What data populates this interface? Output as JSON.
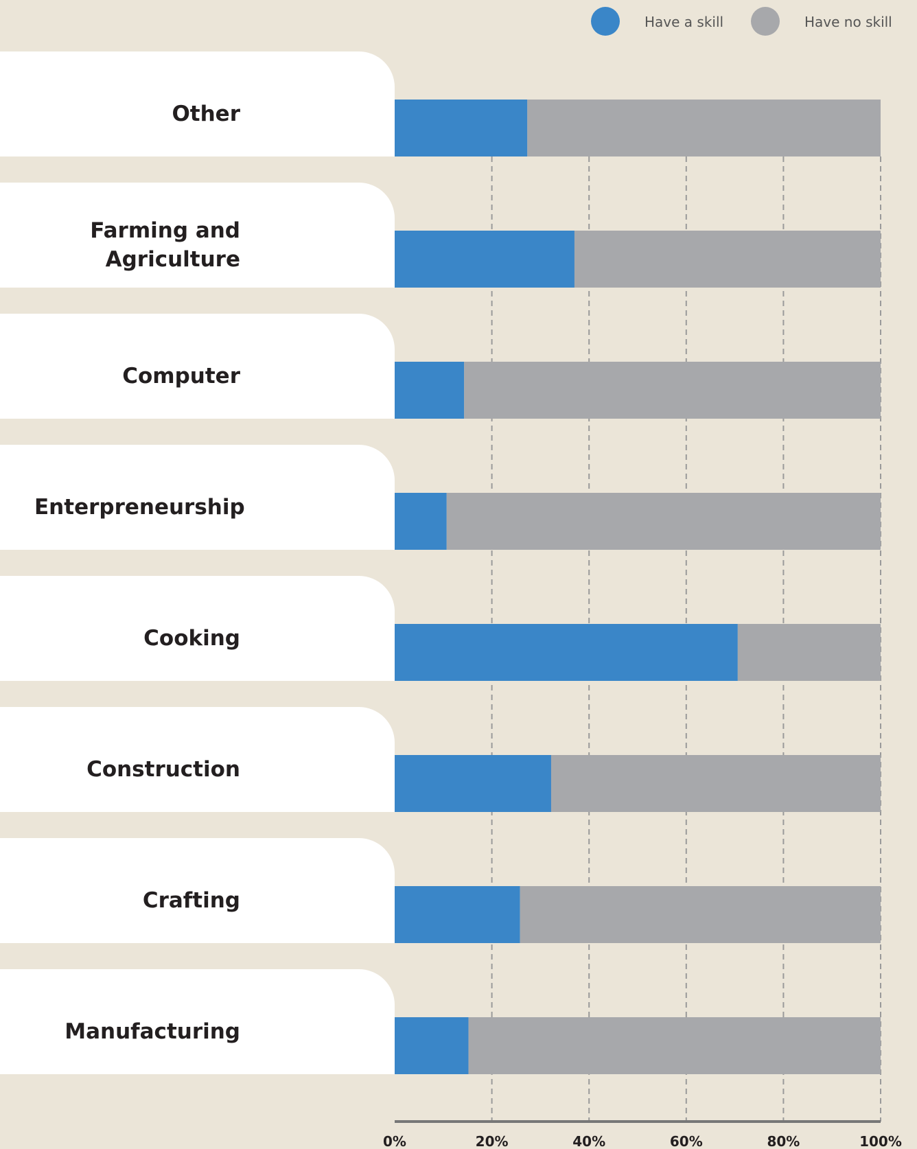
{
  "chart_data": {
    "type": "stacked-bar-horizontal",
    "categories": [
      "Other",
      "Farming and Agriculture",
      "Computer",
      "Enterpreneurship",
      "Cooking",
      "Construction",
      "Crafting",
      "Manufacturing"
    ],
    "series": [
      {
        "name": "Have a skill",
        "color": "#3a86c8",
        "values": [
          27.3,
          37.0,
          14.3,
          10.7,
          70.6,
          32.2,
          25.8,
          15.2
        ]
      },
      {
        "name": "Have no skill",
        "color": "#a7a8ab",
        "values": [
          72.7,
          63.0,
          85.7,
          89.3,
          29.4,
          67.8,
          74.2,
          84.8
        ]
      }
    ],
    "xlim": [
      0,
      100
    ],
    "xticks": [
      {
        "value": 0,
        "label": "0%"
      },
      {
        "value": 20,
        "label": "20%"
      },
      {
        "value": 40,
        "label": "40%"
      },
      {
        "value": 60,
        "label": "60%"
      },
      {
        "value": 80,
        "label": "80%"
      },
      {
        "value": 100,
        "label": "100%"
      }
    ],
    "grid": true
  }
}
